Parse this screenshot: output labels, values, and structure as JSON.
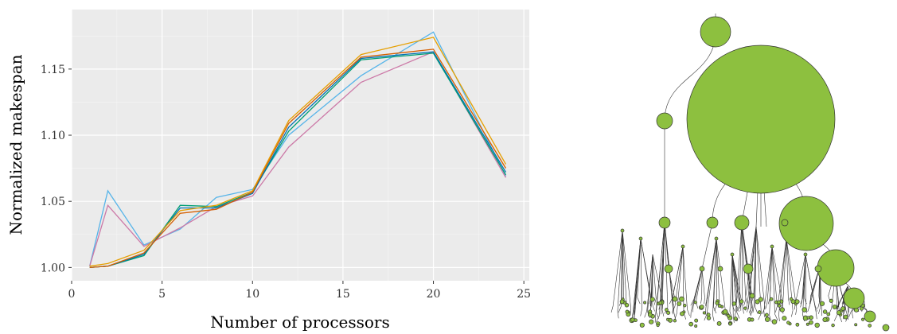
{
  "chart_data": {
    "type": "line",
    "xlabel": "Number of processors",
    "ylabel": "Normalized makespan",
    "xlim": [
      0,
      25.3
    ],
    "ylim": [
      0.99,
      1.195
    ],
    "xticks": [
      "0",
      "5",
      "10",
      "15",
      "20",
      "25"
    ],
    "yticks": [
      "1.00",
      "1.05",
      "1.10",
      "1.15"
    ],
    "grid": true,
    "legend": "none",
    "series": [
      {
        "color": "#56B4E9",
        "x": [
          1,
          2,
          4,
          6,
          8,
          10,
          12,
          16,
          20,
          24
        ],
        "y": [
          1.001,
          1.058,
          1.017,
          1.029,
          1.053,
          1.059,
          1.1,
          1.145,
          1.178,
          1.069
        ]
      },
      {
        "color": "#CC79A7",
        "x": [
          1,
          2,
          4,
          6,
          8,
          10,
          12,
          16,
          20,
          24
        ],
        "y": [
          1.001,
          1.047,
          1.016,
          1.03,
          1.046,
          1.054,
          1.091,
          1.14,
          1.163,
          1.068
        ]
      },
      {
        "color": "#009E73",
        "x": [
          1,
          2,
          4,
          6,
          8,
          10,
          12,
          16,
          20,
          24
        ],
        "y": [
          1.0,
          1.001,
          1.009,
          1.047,
          1.046,
          1.057,
          1.103,
          1.157,
          1.162,
          1.07
        ]
      },
      {
        "color": "#0072B2",
        "x": [
          1,
          2,
          4,
          6,
          8,
          10,
          12,
          16,
          20,
          24
        ],
        "y": [
          1.0,
          1.001,
          1.01,
          1.045,
          1.045,
          1.056,
          1.106,
          1.158,
          1.163,
          1.072
        ]
      },
      {
        "color": "#D55E00",
        "x": [
          1,
          2,
          4,
          6,
          8,
          10,
          12,
          16,
          20,
          24
        ],
        "y": [
          1.0,
          1.001,
          1.011,
          1.041,
          1.044,
          1.057,
          1.109,
          1.159,
          1.165,
          1.075
        ]
      },
      {
        "color": "#E69F00",
        "x": [
          1,
          2,
          4,
          6,
          8,
          10,
          12,
          16,
          20,
          24
        ],
        "y": [
          1.001,
          1.003,
          1.013,
          1.043,
          1.047,
          1.058,
          1.111,
          1.161,
          1.174,
          1.078
        ]
      }
    ]
  },
  "tree": {
    "node_color": "#8dc03f",
    "edge_color": "#333333"
  }
}
